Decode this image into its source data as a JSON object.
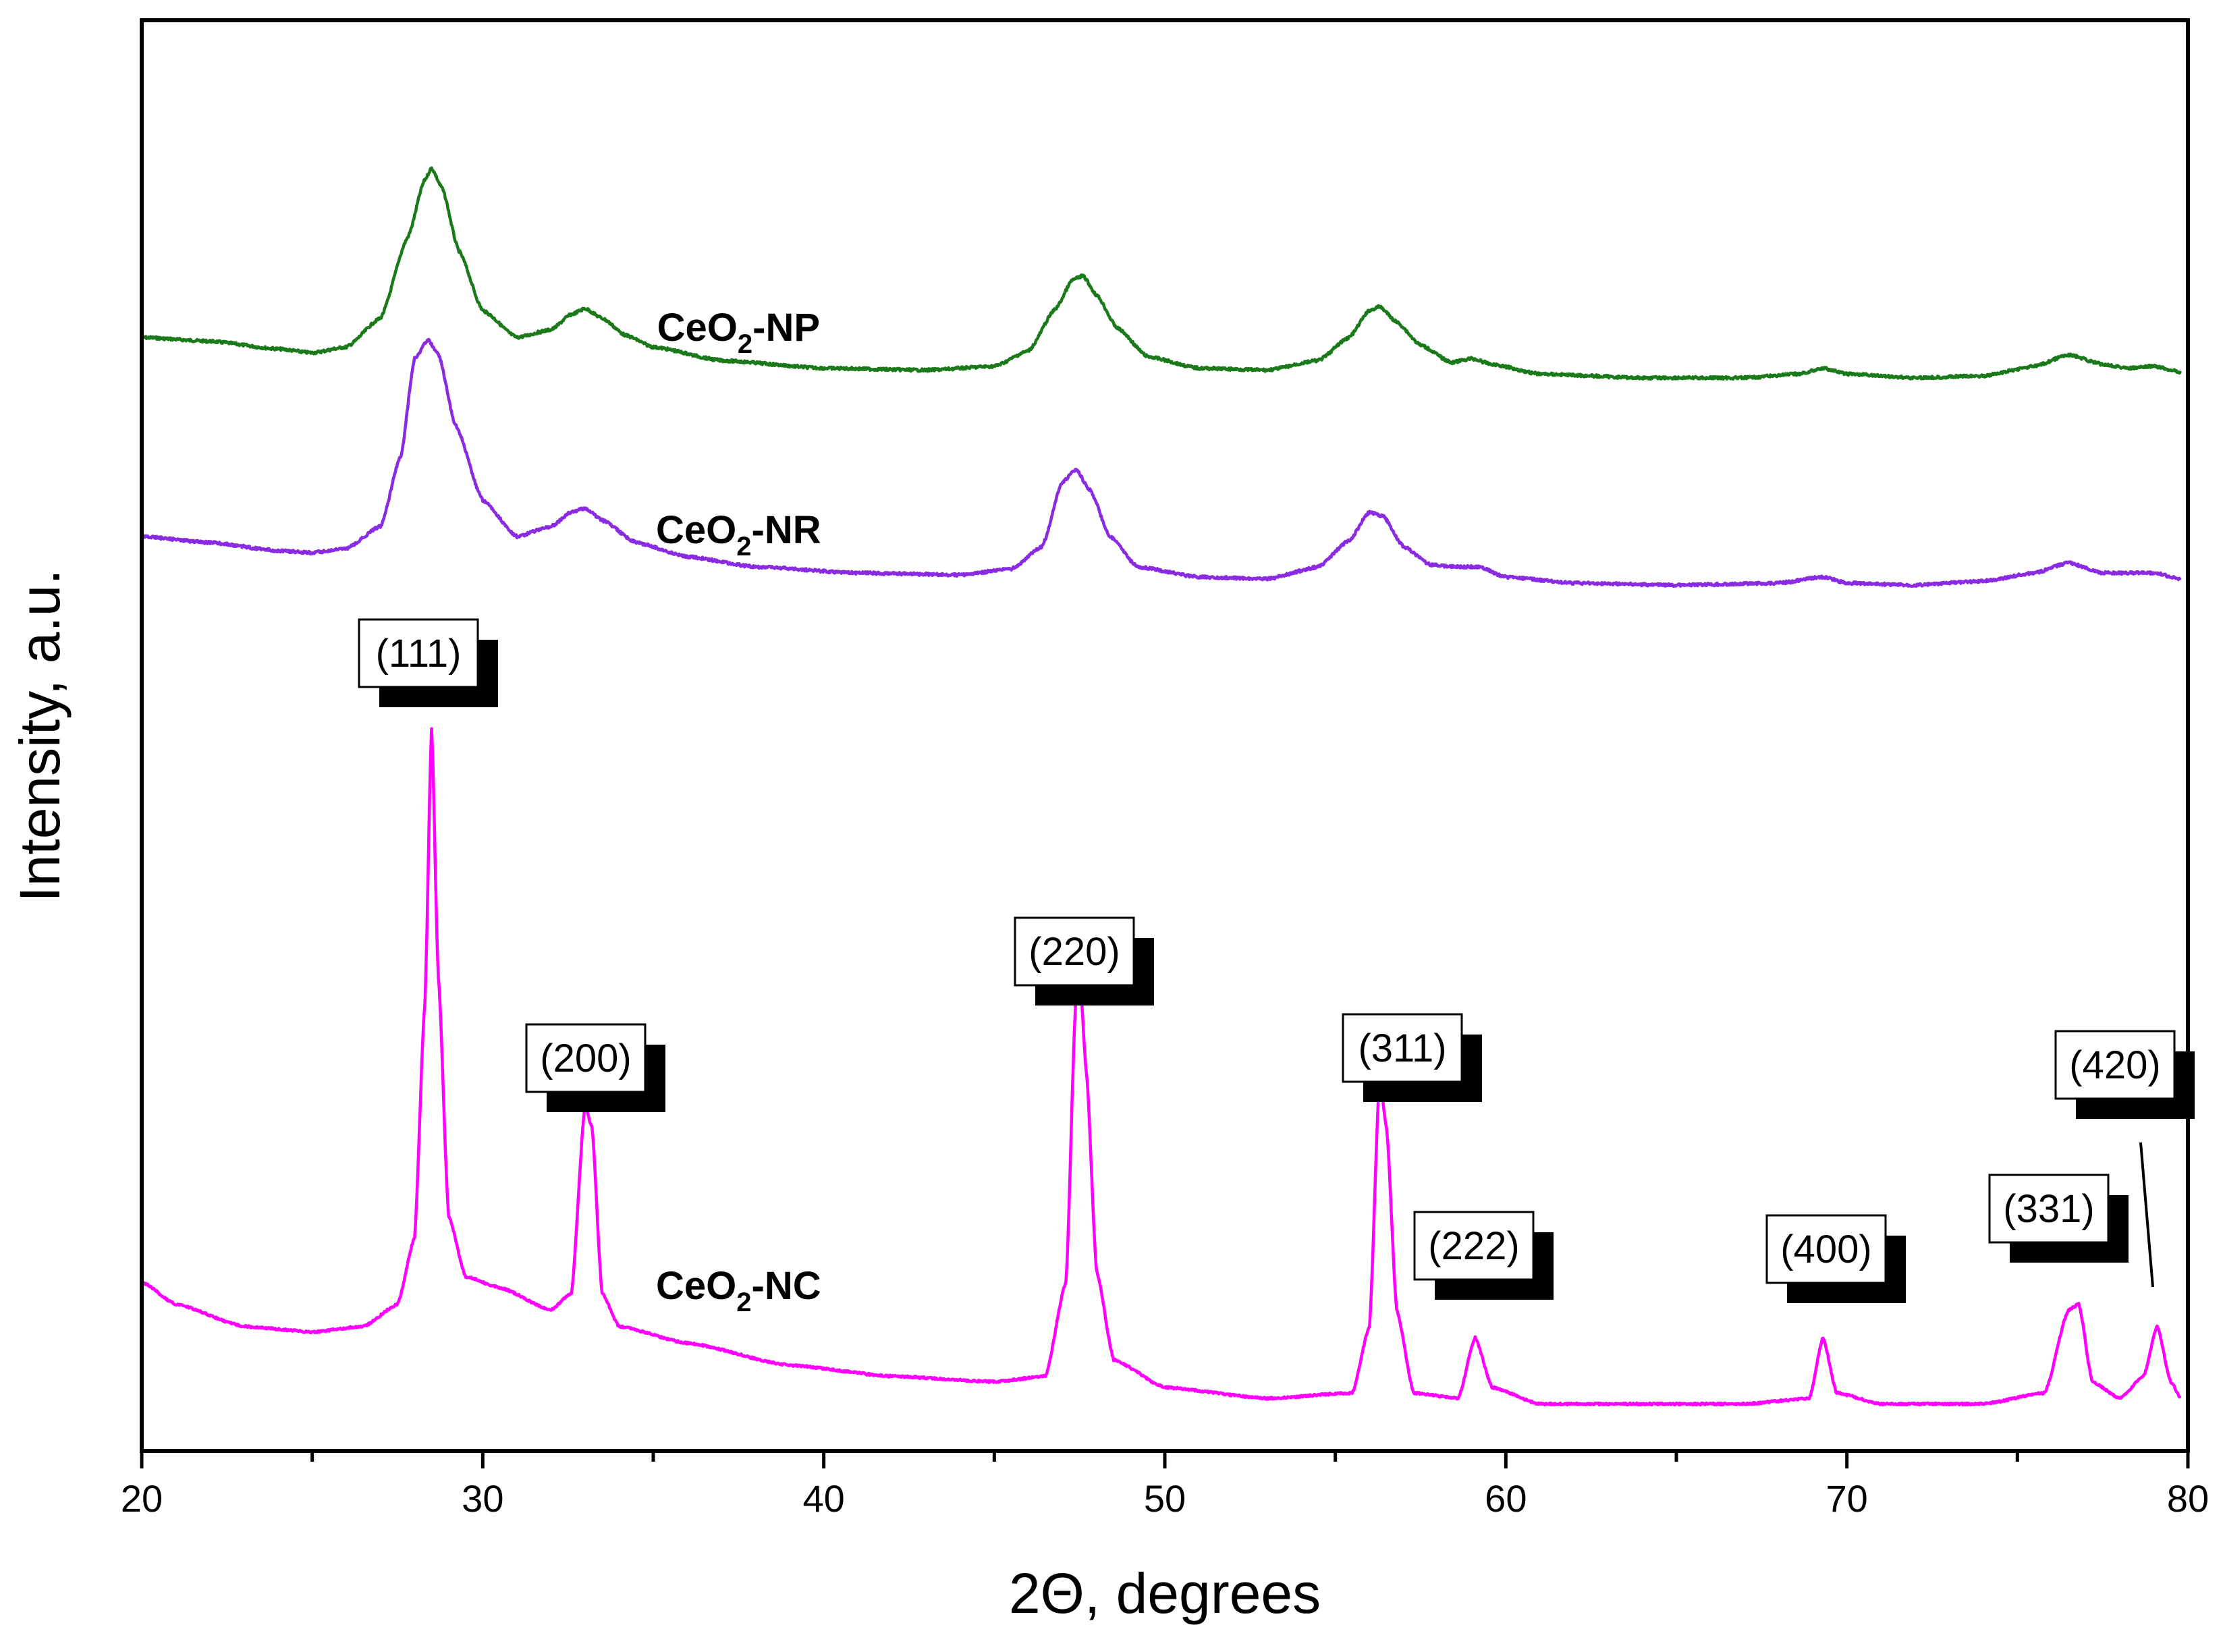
{
  "chart_data": {
    "type": "line",
    "xlabel": "2Θ, degrees",
    "ylabel": "Intensity, a.u.",
    "xlim": [
      20,
      80
    ],
    "x_ticks": [
      "20",
      "30",
      "40",
      "50",
      "60",
      "70",
      "80"
    ],
    "grid": false,
    "series": [
      {
        "name": "CeO2-NP",
        "label_main": "CeO",
        "label_sub": "2",
        "label_suffix": "-NP",
        "label_x": 37.5,
        "color": "#1a7a1a",
        "points": [
          [
            20,
            0.0
          ],
          [
            22,
            -0.02
          ],
          [
            24,
            -0.06
          ],
          [
            25,
            -0.08
          ],
          [
            26,
            -0.05
          ],
          [
            27,
            0.1
          ],
          [
            27.8,
            0.52
          ],
          [
            28.3,
            0.82
          ],
          [
            28.5,
            0.88
          ],
          [
            28.8,
            0.78
          ],
          [
            29.3,
            0.45
          ],
          [
            30,
            0.14
          ],
          [
            31,
            0.0
          ],
          [
            32,
            0.04
          ],
          [
            32.6,
            0.12
          ],
          [
            33.0,
            0.15
          ],
          [
            33.5,
            0.1
          ],
          [
            34.2,
            0.01
          ],
          [
            35,
            -0.05
          ],
          [
            37,
            -0.12
          ],
          [
            40,
            -0.16
          ],
          [
            43,
            -0.17
          ],
          [
            45,
            -0.15
          ],
          [
            46,
            -0.07
          ],
          [
            46.8,
            0.15
          ],
          [
            47.3,
            0.3
          ],
          [
            47.6,
            0.32
          ],
          [
            48.0,
            0.22
          ],
          [
            48.6,
            0.05
          ],
          [
            49.5,
            -0.1
          ],
          [
            51,
            -0.16
          ],
          [
            53,
            -0.17
          ],
          [
            54.5,
            -0.12
          ],
          [
            55.4,
            0.0
          ],
          [
            56.0,
            0.14
          ],
          [
            56.3,
            0.16
          ],
          [
            56.8,
            0.08
          ],
          [
            57.5,
            -0.04
          ],
          [
            58.4,
            -0.13
          ],
          [
            59.0,
            -0.11
          ],
          [
            59.6,
            -0.14
          ],
          [
            61,
            -0.19
          ],
          [
            64,
            -0.21
          ],
          [
            67,
            -0.21
          ],
          [
            68.6,
            -0.19
          ],
          [
            69.3,
            -0.16
          ],
          [
            70,
            -0.19
          ],
          [
            72,
            -0.21
          ],
          [
            74,
            -0.2
          ],
          [
            75.5,
            -0.15
          ],
          [
            76.5,
            -0.09
          ],
          [
            77.5,
            -0.14
          ],
          [
            78.3,
            -0.16
          ],
          [
            79,
            -0.15
          ],
          [
            79.8,
            -0.18
          ]
        ]
      },
      {
        "name": "CeO2-NR",
        "label_main": "CeO",
        "label_sub": "2",
        "label_suffix": "-NR",
        "label_x": 37.5,
        "color": "#8a2be2",
        "points": [
          [
            20,
            0.0
          ],
          [
            22,
            -0.03
          ],
          [
            24,
            -0.07
          ],
          [
            25,
            -0.08
          ],
          [
            26,
            -0.06
          ],
          [
            27,
            0.05
          ],
          [
            27.6,
            0.4
          ],
          [
            28.0,
            0.88
          ],
          [
            28.4,
            0.97
          ],
          [
            28.7,
            0.9
          ],
          [
            29.2,
            0.55
          ],
          [
            30,
            0.18
          ],
          [
            31,
            0.0
          ],
          [
            32,
            0.05
          ],
          [
            32.6,
            0.12
          ],
          [
            33.0,
            0.14
          ],
          [
            33.5,
            0.08
          ],
          [
            34.5,
            -0.03
          ],
          [
            36,
            -0.1
          ],
          [
            38,
            -0.15
          ],
          [
            41,
            -0.18
          ],
          [
            44,
            -0.19
          ],
          [
            45.5,
            -0.16
          ],
          [
            46.4,
            -0.05
          ],
          [
            47.0,
            0.27
          ],
          [
            47.4,
            0.33
          ],
          [
            47.8,
            0.23
          ],
          [
            48.4,
            0.0
          ],
          [
            49.2,
            -0.15
          ],
          [
            51,
            -0.2
          ],
          [
            53,
            -0.21
          ],
          [
            54.5,
            -0.15
          ],
          [
            55.4,
            -0.02
          ],
          [
            56.0,
            0.12
          ],
          [
            56.4,
            0.1
          ],
          [
            57.0,
            -0.05
          ],
          [
            57.8,
            -0.14
          ],
          [
            58.6,
            -0.15
          ],
          [
            59.2,
            -0.15
          ],
          [
            60,
            -0.2
          ],
          [
            62,
            -0.23
          ],
          [
            65,
            -0.24
          ],
          [
            68,
            -0.23
          ],
          [
            69.3,
            -0.2
          ],
          [
            70,
            -0.23
          ],
          [
            72,
            -0.24
          ],
          [
            74,
            -0.22
          ],
          [
            75.5,
            -0.18
          ],
          [
            76.5,
            -0.13
          ],
          [
            77.5,
            -0.18
          ],
          [
            79,
            -0.18
          ],
          [
            79.8,
            -0.21
          ]
        ]
      },
      {
        "name": "CeO2-NC",
        "label_main": "CeO",
        "label_sub": "2",
        "label_suffix": "-NC",
        "label_x": 37.5,
        "color": "#ff00ff",
        "points": [
          [
            20,
            0.0
          ],
          [
            21,
            -0.04
          ],
          [
            23,
            -0.08
          ],
          [
            25,
            -0.09
          ],
          [
            26.5,
            -0.08
          ],
          [
            27.5,
            -0.04
          ],
          [
            28.0,
            0.08
          ],
          [
            28.3,
            0.5
          ],
          [
            28.5,
            1.0
          ],
          [
            28.7,
            0.55
          ],
          [
            29.0,
            0.12
          ],
          [
            29.5,
            0.01
          ],
          [
            30.5,
            -0.01
          ],
          [
            32,
            -0.05
          ],
          [
            32.6,
            -0.02
          ],
          [
            33.0,
            0.32
          ],
          [
            33.2,
            0.28
          ],
          [
            33.5,
            -0.02
          ],
          [
            34,
            -0.08
          ],
          [
            36,
            -0.11
          ],
          [
            39,
            -0.15
          ],
          [
            42,
            -0.17
          ],
          [
            45,
            -0.18
          ],
          [
            46.5,
            -0.17
          ],
          [
            47.1,
            0.0
          ],
          [
            47.4,
            0.52
          ],
          [
            47.5,
            0.56
          ],
          [
            47.7,
            0.38
          ],
          [
            48.0,
            0.02
          ],
          [
            48.5,
            -0.14
          ],
          [
            50,
            -0.19
          ],
          [
            53,
            -0.21
          ],
          [
            55.5,
            -0.2
          ],
          [
            56.0,
            -0.08
          ],
          [
            56.3,
            0.37
          ],
          [
            56.5,
            0.28
          ],
          [
            56.8,
            -0.05
          ],
          [
            57.3,
            -0.2
          ],
          [
            58.6,
            -0.21
          ],
          [
            59.1,
            -0.1
          ],
          [
            59.6,
            -0.19
          ],
          [
            61,
            -0.22
          ],
          [
            64,
            -0.22
          ],
          [
            67,
            -0.22
          ],
          [
            68.9,
            -0.21
          ],
          [
            69.3,
            -0.1
          ],
          [
            69.7,
            -0.2
          ],
          [
            71,
            -0.22
          ],
          [
            74,
            -0.22
          ],
          [
            75.8,
            -0.2
          ],
          [
            76.5,
            -0.05
          ],
          [
            76.8,
            -0.04
          ],
          [
            77.2,
            -0.18
          ],
          [
            78,
            -0.21
          ],
          [
            78.7,
            -0.17
          ],
          [
            79.1,
            -0.08
          ],
          [
            79.5,
            -0.18
          ],
          [
            79.8,
            -0.21
          ]
        ]
      }
    ],
    "peak_annotations": [
      {
        "label": "(111)",
        "x": 28.5
      },
      {
        "label": "(200)",
        "x": 33.1
      },
      {
        "label": "(220)",
        "x": 47.5
      },
      {
        "label": "(311)",
        "x": 56.3
      },
      {
        "label": "(222)",
        "x": 59.1
      },
      {
        "label": "(400)",
        "x": 69.4
      },
      {
        "label": "(331)",
        "x": 76.7
      },
      {
        "label": "(420)",
        "x": 79.1
      }
    ]
  }
}
